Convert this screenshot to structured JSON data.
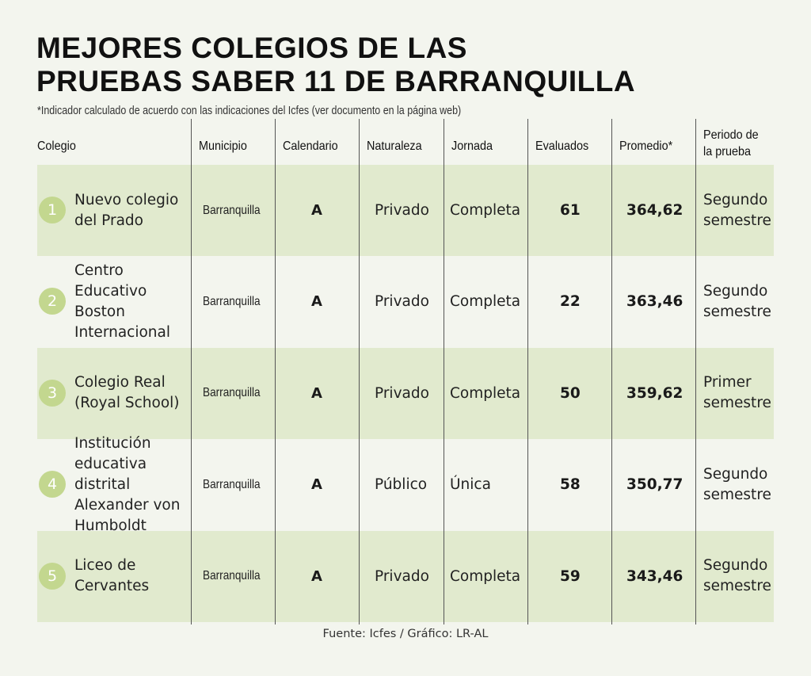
{
  "title_line1": "MEJORES COLEGIOS DE LAS",
  "title_line2": "PRUEBAS SABER 11 DE BARRANQUILLA",
  "note": "*Indicador calculado de acuerdo con las indicaciones del Icfes (ver documento en la página web)",
  "headers": {
    "colegio": "Colegio",
    "municipio": "Municipio",
    "calendario": "Calendario",
    "naturaleza": "Naturaleza",
    "jornada": "Jornada",
    "evaluados": "Evaluados",
    "promedio": "Promedio*",
    "periodo": "Periodo de la prueba"
  },
  "rows": [
    {
      "rank": "1",
      "colegio": "Nuevo colegio del Prado",
      "municipio": "Barranquilla",
      "calendario": "A",
      "naturaleza": "Privado",
      "jornada": "Completa",
      "evaluados": "61",
      "promedio": "364,62",
      "periodo": "Segundo semestre"
    },
    {
      "rank": "2",
      "colegio": "Centro Educativo Boston Internacional",
      "municipio": "Barranquilla",
      "calendario": "A",
      "naturaleza": "Privado",
      "jornada": "Completa",
      "evaluados": "22",
      "promedio": "363,46",
      "periodo": "Segundo semestre"
    },
    {
      "rank": "3",
      "colegio": "Colegio Real (Royal School)",
      "municipio": "Barranquilla",
      "calendario": "A",
      "naturaleza": "Privado",
      "jornada": "Completa",
      "evaluados": "50",
      "promedio": "359,62",
      "periodo": "Primer semestre"
    },
    {
      "rank": "4",
      "colegio": "Institución educativa distrital Alexander von Humboldt",
      "municipio": "Barranquilla",
      "calendario": "A",
      "naturaleza": "Público",
      "jornada": "Única",
      "evaluados": "58",
      "promedio": "350,77",
      "periodo": "Segundo semestre"
    },
    {
      "rank": "5",
      "colegio": "Liceo de Cervantes",
      "municipio": "Barranquilla",
      "calendario": "A",
      "naturaleza": "Privado",
      "jornada": "Completa",
      "evaluados": "59",
      "promedio": "343,46",
      "periodo": "Segundo semestre"
    }
  ],
  "source": "Fuente: Icfes / Gráfico: LR-AL",
  "colors": {
    "row_highlight": "#e1eace",
    "rank_circle": "#c3d78f",
    "background": "#f3f5ee"
  }
}
